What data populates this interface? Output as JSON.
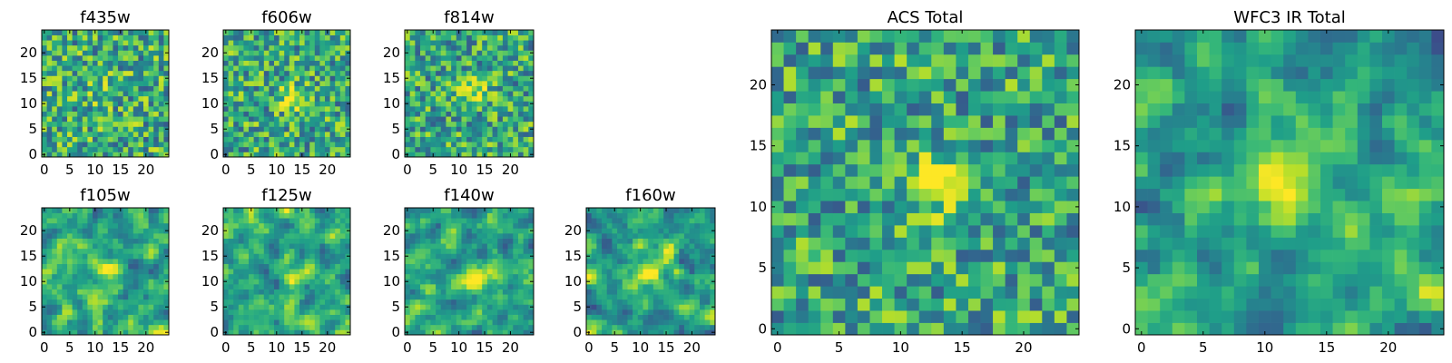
{
  "chart_data": [
    {
      "type": "heatmap",
      "title": "f435w",
      "xticks": [
        "0",
        "5",
        "10",
        "15",
        "20"
      ],
      "yticks": [
        "0",
        "5",
        "10",
        "15",
        "20"
      ],
      "xlim": [
        0,
        25
      ],
      "ylim": [
        0,
        25
      ],
      "grid": false,
      "colormap": "viridis",
      "peak": [
        12,
        12
      ],
      "peak_strength": 0.25
    },
    {
      "type": "heatmap",
      "title": "f606w",
      "xticks": [
        "0",
        "5",
        "10",
        "15",
        "20"
      ],
      "yticks": [
        "0",
        "5",
        "10",
        "15",
        "20"
      ],
      "xlim": [
        0,
        25
      ],
      "ylim": [
        0,
        25
      ],
      "grid": false,
      "colormap": "viridis",
      "peak": [
        13,
        11
      ],
      "peak_strength": 0.35
    },
    {
      "type": "heatmap",
      "title": "f814w",
      "xticks": [
        "0",
        "5",
        "10",
        "15",
        "20"
      ],
      "yticks": [
        "0",
        "5",
        "10",
        "15",
        "20"
      ],
      "xlim": [
        0,
        25
      ],
      "ylim": [
        0,
        25
      ],
      "grid": false,
      "colormap": "viridis",
      "peak": [
        13,
        12
      ],
      "peak_strength": 0.4
    },
    {
      "type": "heatmap",
      "title": "f105w",
      "xticks": [
        "0",
        "5",
        "10",
        "15",
        "20"
      ],
      "yticks": [
        "0",
        "5",
        "10",
        "15",
        "20"
      ],
      "xlim": [
        0,
        25
      ],
      "ylim": [
        0,
        25
      ],
      "grid": false,
      "colormap": "viridis",
      "peak": [
        13,
        12
      ],
      "peak_strength": 0.5
    },
    {
      "type": "heatmap",
      "title": "f125w",
      "xticks": [
        "0",
        "5",
        "10",
        "15",
        "20"
      ],
      "yticks": [
        "0",
        "5",
        "10",
        "15",
        "20"
      ],
      "xlim": [
        0,
        25
      ],
      "ylim": [
        0,
        25
      ],
      "grid": false,
      "colormap": "viridis",
      "peak": [
        13,
        11
      ],
      "peak_strength": 0.5
    },
    {
      "type": "heatmap",
      "title": "f140w",
      "xticks": [
        "0",
        "5",
        "10",
        "15",
        "20"
      ],
      "yticks": [
        "0",
        "5",
        "10",
        "15",
        "20"
      ],
      "xlim": [
        0,
        25
      ],
      "ylim": [
        0,
        25
      ],
      "grid": false,
      "colormap": "viridis",
      "peak": [
        13,
        11
      ],
      "peak_strength": 0.55
    },
    {
      "type": "heatmap",
      "title": "f160w",
      "xticks": [
        "0",
        "5",
        "10",
        "15",
        "20"
      ],
      "yticks": [
        "0",
        "5",
        "10",
        "15",
        "20"
      ],
      "xlim": [
        0,
        25
      ],
      "ylim": [
        0,
        25
      ],
      "grid": false,
      "colormap": "viridis",
      "peak": [
        12,
        12
      ],
      "peak_strength": 0.6
    },
    {
      "type": "heatmap",
      "title": "ACS Total",
      "xticks": [
        "0",
        "5",
        "10",
        "15",
        "20"
      ],
      "yticks": [
        "0",
        "5",
        "10",
        "15",
        "20"
      ],
      "xlim": [
        0,
        25
      ],
      "ylim": [
        0,
        25
      ],
      "grid": false,
      "colormap": "viridis",
      "peak": [
        13,
        12
      ],
      "peak_strength": 0.45
    },
    {
      "type": "heatmap",
      "title": "WFC3 IR Total",
      "xticks": [
        "0",
        "5",
        "10",
        "15",
        "20"
      ],
      "yticks": [
        "0",
        "5",
        "10",
        "15",
        "20"
      ],
      "xlim": [
        0,
        25
      ],
      "ylim": [
        0,
        25
      ],
      "grid": false,
      "colormap": "viridis",
      "peak": [
        12,
        12
      ],
      "peak_strength": 0.7
    }
  ]
}
